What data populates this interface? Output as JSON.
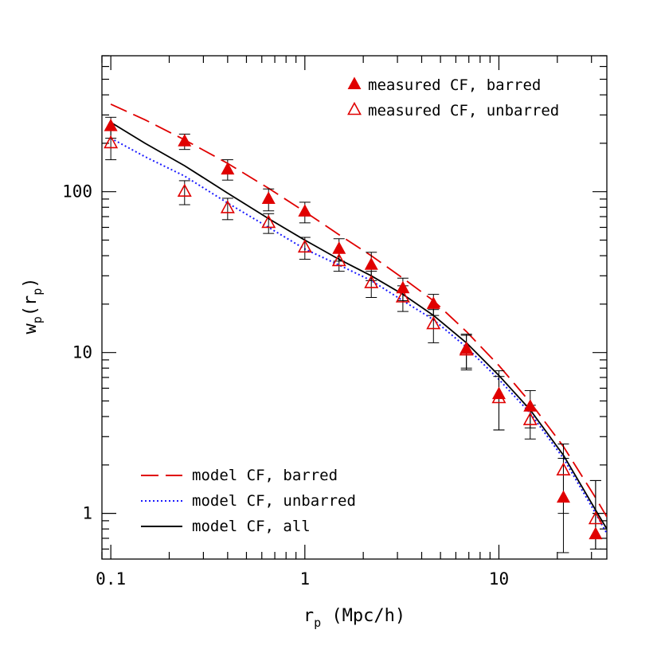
{
  "chart_data": {
    "type": "scatter",
    "xlabel": {
      "main": "r",
      "sub": "p",
      "rest": " (Mpc/h)"
    },
    "ylabel": {
      "main": "w",
      "sub": "p",
      "open": "(r",
      "sub2": "p",
      "close": ")"
    },
    "xscale": "log",
    "yscale": "log",
    "xlim": [
      0.09,
      36
    ],
    "ylim": [
      0.52,
      700
    ],
    "x_ticks": [
      {
        "value": 0.1,
        "label": "0.1"
      },
      {
        "value": 1,
        "label": "1"
      },
      {
        "value": 10,
        "label": "10"
      }
    ],
    "y_ticks": [
      {
        "value": 1,
        "label": "1"
      },
      {
        "value": 10,
        "label": "10"
      },
      {
        "value": 100,
        "label": "100"
      }
    ],
    "legend_points": [
      {
        "label": "measured CF, barred",
        "marker": "filled-triangle",
        "color": "#e00000"
      },
      {
        "label": "measured CF, unbarred",
        "marker": "open-triangle",
        "color": "#e00000"
      }
    ],
    "legend_lines": [
      {
        "label": "model CF, barred",
        "style": "dashed",
        "color": "#e00000"
      },
      {
        "label": "model CF, unbarred",
        "style": "dotted",
        "color": "#1a1aff"
      },
      {
        "label": "model CF, all",
        "style": "solid",
        "color": "#000000"
      }
    ],
    "measured_barred": [
      {
        "x": 0.1,
        "y": 255,
        "lo": 215,
        "hi": 290
      },
      {
        "x": 0.24,
        "y": 205,
        "lo": 183,
        "hi": 228
      },
      {
        "x": 0.4,
        "y": 137,
        "lo": 118,
        "hi": 158
      },
      {
        "x": 0.65,
        "y": 90,
        "lo": 76,
        "hi": 104
      },
      {
        "x": 1.0,
        "y": 75,
        "lo": 64,
        "hi": 86
      },
      {
        "x": 1.5,
        "y": 44,
        "lo": 37,
        "hi": 51
      },
      {
        "x": 2.2,
        "y": 35,
        "lo": 28,
        "hi": 42
      },
      {
        "x": 3.2,
        "y": 25,
        "lo": 21,
        "hi": 29
      },
      {
        "x": 4.6,
        "y": 20,
        "lo": 17,
        "hi": 23
      },
      {
        "x": 6.8,
        "y": 10.5,
        "lo": 8.0,
        "hi": 13.0
      },
      {
        "x": 10.0,
        "y": 5.5,
        "lo": 3.3,
        "hi": 7.7
      },
      {
        "x": 14.5,
        "y": 4.6,
        "lo": 3.4,
        "hi": 5.8
      },
      {
        "x": 21.5,
        "y": 1.25,
        "lo": 0.57,
        "hi": 2.2
      },
      {
        "x": 31.5,
        "y": 0.74,
        "lo": 0.6,
        "hi": 1.6
      }
    ],
    "measured_unbarred": [
      {
        "x": 0.1,
        "y": 200,
        "lo": 158,
        "hi": 245
      },
      {
        "x": 0.24,
        "y": 100,
        "lo": 83,
        "hi": 117
      },
      {
        "x": 0.4,
        "y": 79,
        "lo": 67,
        "hi": 91
      },
      {
        "x": 0.65,
        "y": 64,
        "lo": 55,
        "hi": 73
      },
      {
        "x": 1.0,
        "y": 45,
        "lo": 38,
        "hi": 52
      },
      {
        "x": 1.5,
        "y": 37,
        "lo": 32,
        "hi": 42
      },
      {
        "x": 2.2,
        "y": 27,
        "lo": 22,
        "hi": 32
      },
      {
        "x": 3.2,
        "y": 22,
        "lo": 18,
        "hi": 26
      },
      {
        "x": 4.6,
        "y": 15,
        "lo": 11.5,
        "hi": 18.5
      },
      {
        "x": 6.8,
        "y": 10.3,
        "lo": 7.8,
        "hi": 12.8
      },
      {
        "x": 10.0,
        "y": 5.2,
        "lo": 3.3,
        "hi": 7.1
      },
      {
        "x": 14.5,
        "y": 3.8,
        "lo": 2.9,
        "hi": 4.7
      },
      {
        "x": 21.5,
        "y": 1.85,
        "lo": 1.0,
        "hi": 2.7
      },
      {
        "x": 31.5,
        "y": 0.92,
        "lo": 0.6,
        "hi": 1.6
      }
    ],
    "model_barred": [
      {
        "x": 0.1,
        "y": 350
      },
      {
        "x": 0.15,
        "y": 280
      },
      {
        "x": 0.24,
        "y": 210
      },
      {
        "x": 0.4,
        "y": 150
      },
      {
        "x": 0.65,
        "y": 105
      },
      {
        "x": 1.0,
        "y": 75
      },
      {
        "x": 1.5,
        "y": 54
      },
      {
        "x": 2.2,
        "y": 40
      },
      {
        "x": 3.2,
        "y": 29
      },
      {
        "x": 4.6,
        "y": 21
      },
      {
        "x": 6.8,
        "y": 13.5
      },
      {
        "x": 10.0,
        "y": 8.3
      },
      {
        "x": 14.5,
        "y": 4.9
      },
      {
        "x": 21.5,
        "y": 2.6
      },
      {
        "x": 31.5,
        "y": 1.25
      },
      {
        "x": 36.0,
        "y": 0.95
      }
    ],
    "model_unbarred": [
      {
        "x": 0.1,
        "y": 215
      },
      {
        "x": 0.15,
        "y": 165
      },
      {
        "x": 0.24,
        "y": 125
      },
      {
        "x": 0.4,
        "y": 85
      },
      {
        "x": 0.65,
        "y": 60
      },
      {
        "x": 1.0,
        "y": 44
      },
      {
        "x": 1.5,
        "y": 35
      },
      {
        "x": 2.2,
        "y": 28
      },
      {
        "x": 3.2,
        "y": 21
      },
      {
        "x": 4.6,
        "y": 16
      },
      {
        "x": 6.8,
        "y": 10.8
      },
      {
        "x": 10.0,
        "y": 6.8
      },
      {
        "x": 14.5,
        "y": 4.2
      },
      {
        "x": 21.5,
        "y": 2.2
      },
      {
        "x": 31.5,
        "y": 1.0
      },
      {
        "x": 36.0,
        "y": 0.75
      }
    ],
    "model_all": [
      {
        "x": 0.1,
        "y": 270
      },
      {
        "x": 0.15,
        "y": 200
      },
      {
        "x": 0.24,
        "y": 145
      },
      {
        "x": 0.4,
        "y": 98
      },
      {
        "x": 0.65,
        "y": 68
      },
      {
        "x": 1.0,
        "y": 50
      },
      {
        "x": 1.5,
        "y": 38
      },
      {
        "x": 2.2,
        "y": 30
      },
      {
        "x": 3.2,
        "y": 23
      },
      {
        "x": 4.6,
        "y": 17
      },
      {
        "x": 6.8,
        "y": 11.5
      },
      {
        "x": 10.0,
        "y": 7.2
      },
      {
        "x": 14.5,
        "y": 4.4
      },
      {
        "x": 21.5,
        "y": 2.3
      },
      {
        "x": 31.5,
        "y": 1.05
      },
      {
        "x": 36.0,
        "y": 0.8
      }
    ]
  }
}
